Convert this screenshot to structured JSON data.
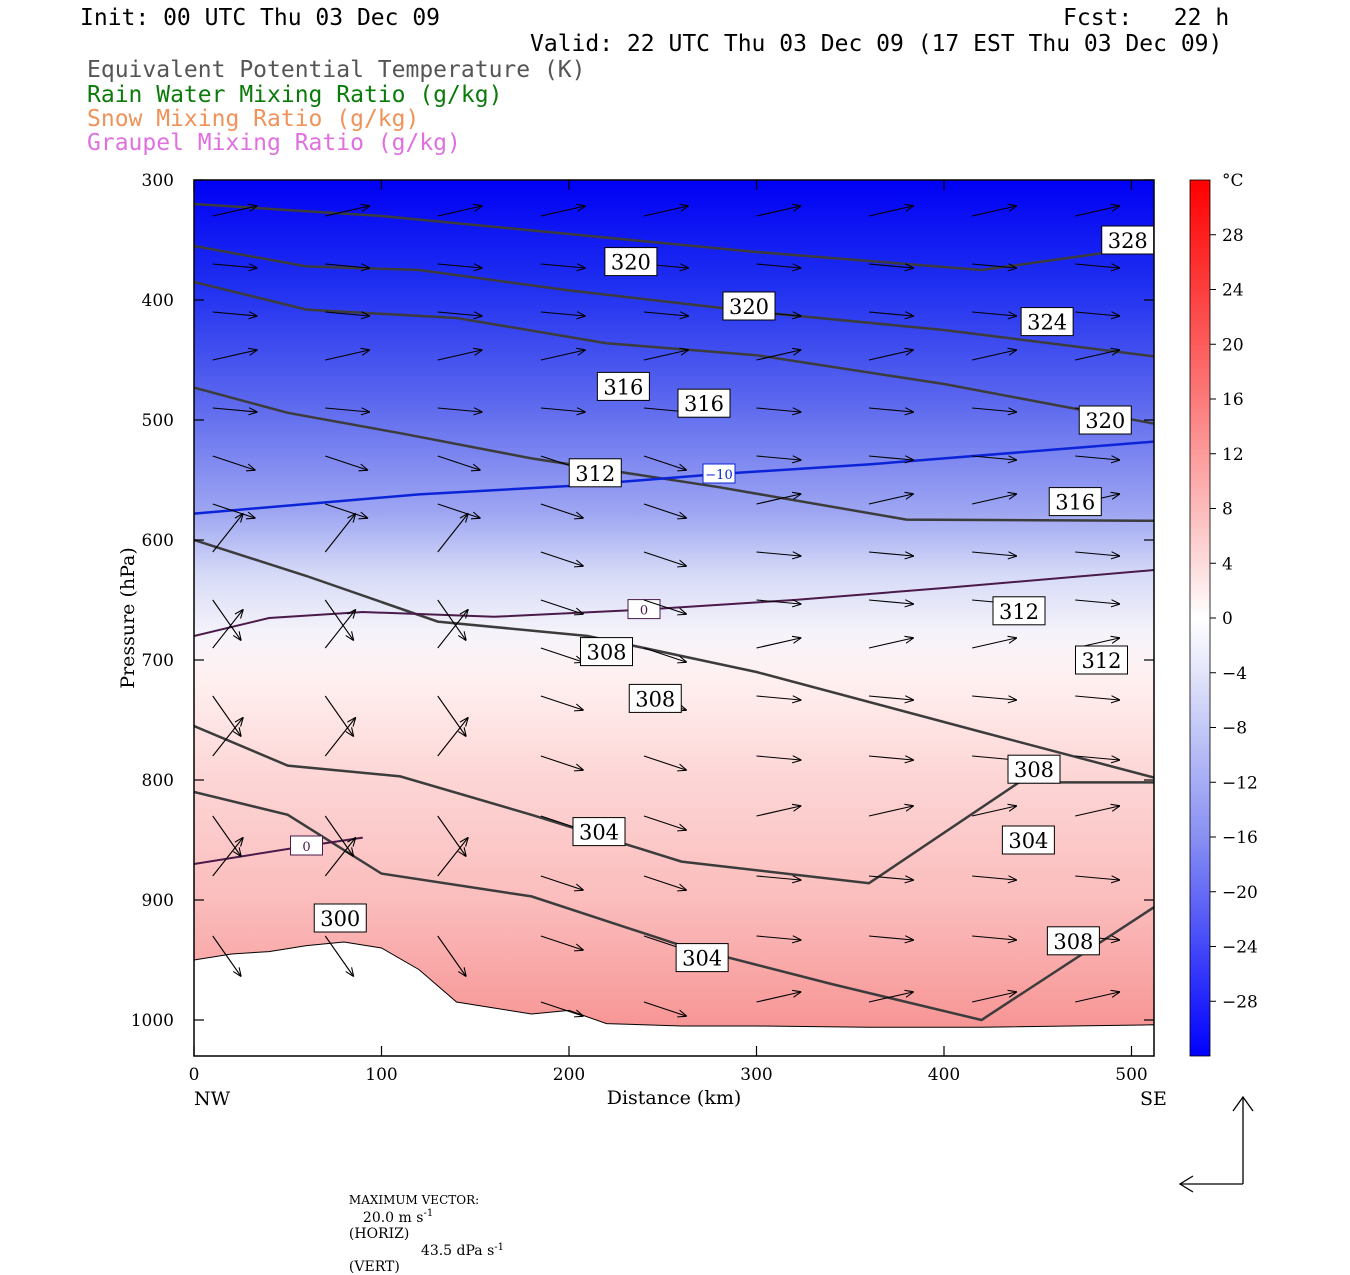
{
  "header": {
    "init": "Init: 00 UTC Thu 03 Dec 09",
    "fcst": "Fcst:   22 h",
    "valid": "Valid: 22 UTC Thu 03 Dec 09 (17 EST Thu 03 Dec 09)"
  },
  "legend": [
    {
      "label": "Equivalent Potential Temperature (K)",
      "color": "#555555"
    },
    {
      "label": "Rain Water Mixing Ratio (g/kg)",
      "color": "#0a7a0a"
    },
    {
      "label": "Snow Mixing Ratio (g/kg)",
      "color": "#f0935a"
    },
    {
      "label": "Graupel Mixing Ratio (g/kg)",
      "color": "#e070e0"
    }
  ],
  "footer": {
    "max_vector_label": "MAXIMUM VECTOR:",
    "horiz": "20.0 m s",
    "horiz_exp": "-1",
    "horiz_tag": "(HORIZ)",
    "vert": "43.5 dPa s",
    "vert_exp": "-1",
    "vert_tag": "(VERT)"
  },
  "chart_data": {
    "type": "heatmap",
    "xlabel": "Distance (km)",
    "ylabel": "Pressure (hPa)",
    "xlim": [
      0,
      512
    ],
    "ylim": [
      1030,
      300
    ],
    "x_ticks": [
      "0",
      "100",
      "200",
      "300",
      "400",
      "500"
    ],
    "y_ticks": [
      "300",
      "400",
      "500",
      "600",
      "700",
      "800",
      "900",
      "1000"
    ],
    "x_end_labels": {
      "left": "NW",
      "right": "SE"
    },
    "colorbar": {
      "unit": "°C",
      "min": -32,
      "max": 32,
      "tick_values": [
        28,
        24,
        20,
        16,
        12,
        8,
        4,
        0,
        -4,
        -8,
        -12,
        -16,
        -20,
        -24,
        -28
      ],
      "tick_labels": [
        "28",
        "24",
        "20",
        "16",
        "12",
        "8",
        "4",
        "0",
        "−4",
        "−8",
        "−12",
        "−16",
        "−20",
        "−24",
        "−28"
      ]
    },
    "temperature_isotherms": [
      {
        "label": "−10",
        "points": [
          [
            0,
            578
          ],
          [
            60,
            570
          ],
          [
            120,
            562
          ],
          [
            200,
            555
          ],
          [
            280,
            545
          ],
          [
            360,
            537
          ],
          [
            440,
            527
          ],
          [
            512,
            518
          ]
        ]
      },
      {
        "label": "0",
        "points": [
          [
            0,
            680
          ],
          [
            40,
            665
          ],
          [
            90,
            660
          ],
          [
            160,
            664
          ],
          [
            240,
            658
          ],
          [
            320,
            650
          ],
          [
            400,
            640
          ],
          [
            512,
            625
          ]
        ]
      },
      {
        "label": "0",
        "points": [
          [
            0,
            870
          ],
          [
            60,
            855
          ],
          [
            90,
            848
          ]
        ]
      }
    ],
    "theta_e_labels": [
      {
        "label": "328",
        "x": 498,
        "y": 350
      },
      {
        "label": "324",
        "x": 455,
        "y": 418
      },
      {
        "label": "320",
        "x": 233,
        "y": 368
      },
      {
        "label": "320",
        "x": 296,
        "y": 405
      },
      {
        "label": "320",
        "x": 486,
        "y": 500
      },
      {
        "label": "316",
        "x": 229,
        "y": 472
      },
      {
        "label": "316",
        "x": 272,
        "y": 486
      },
      {
        "label": "316",
        "x": 470,
        "y": 568
      },
      {
        "label": "312",
        "x": 214,
        "y": 544
      },
      {
        "label": "312",
        "x": 440,
        "y": 659
      },
      {
        "label": "312",
        "x": 484,
        "y": 700
      },
      {
        "label": "308",
        "x": 220,
        "y": 693
      },
      {
        "label": "308",
        "x": 246,
        "y": 732
      },
      {
        "label": "308",
        "x": 448,
        "y": 791
      },
      {
        "label": "308",
        "x": 469,
        "y": 934
      },
      {
        "label": "304",
        "x": 216,
        "y": 843
      },
      {
        "label": "304",
        "x": 445,
        "y": 850
      },
      {
        "label": "304",
        "x": 271,
        "y": 948
      },
      {
        "label": "300",
        "x": 78,
        "y": 915
      }
    ],
    "theta_e_contours": [
      {
        "value": 328,
        "points": [
          [
            0,
            320
          ],
          [
            100,
            330
          ],
          [
            200,
            345
          ],
          [
            300,
            360
          ],
          [
            420,
            375
          ],
          [
            512,
            355
          ]
        ]
      },
      {
        "value": 324,
        "points": [
          [
            0,
            355
          ],
          [
            60,
            372
          ],
          [
            120,
            375
          ],
          [
            200,
            392
          ],
          [
            300,
            410
          ],
          [
            400,
            425
          ],
          [
            512,
            447
          ]
        ]
      },
      {
        "value": 320,
        "points": [
          [
            0,
            385
          ],
          [
            60,
            408
          ],
          [
            140,
            415
          ],
          [
            220,
            436
          ],
          [
            300,
            446
          ],
          [
            400,
            470
          ],
          [
            512,
            503
          ]
        ]
      },
      {
        "value": 316,
        "points": [
          [
            0,
            473
          ],
          [
            50,
            494
          ],
          [
            110,
            511
          ],
          [
            180,
            532
          ],
          [
            280,
            556
          ],
          [
            380,
            583
          ],
          [
            512,
            584
          ]
        ]
      },
      {
        "value": 312,
        "points": [
          [
            0,
            600
          ],
          [
            60,
            630
          ],
          [
            130,
            668
          ],
          [
            210,
            680
          ],
          [
            300,
            710
          ],
          [
            420,
            760
          ],
          [
            512,
            798
          ]
        ]
      },
      {
        "value": 308,
        "points": [
          [
            0,
            755
          ],
          [
            50,
            788
          ],
          [
            110,
            797
          ],
          [
            180,
            829
          ],
          [
            260,
            868
          ],
          [
            360,
            886
          ],
          [
            440,
            802
          ],
          [
            512,
            802
          ]
        ]
      },
      {
        "value": 304,
        "points": [
          [
            0,
            810
          ],
          [
            50,
            829
          ],
          [
            100,
            878
          ],
          [
            180,
            897
          ],
          [
            260,
            938
          ],
          [
            340,
            970
          ],
          [
            420,
            1000
          ],
          [
            512,
            906
          ]
        ]
      }
    ],
    "max_vector": {
      "horiz_m_s": 20.0,
      "vert_dPa_s": 43.5
    }
  }
}
